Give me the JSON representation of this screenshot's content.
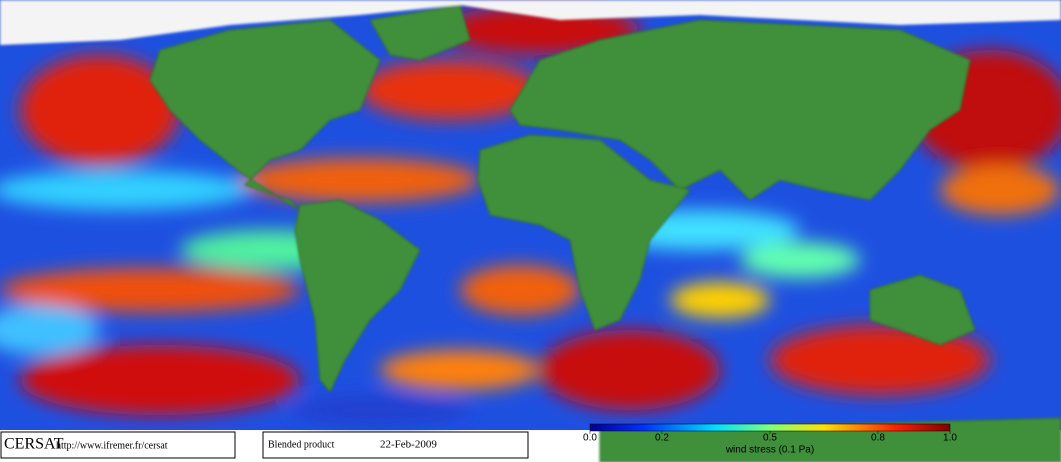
{
  "footer": {
    "logo": "CERSAT",
    "url": "http://www.ifremer.fr/cersat",
    "product": "Blended product",
    "date": "22-Feb-2009"
  },
  "colorbar": {
    "label": "wind stress (0.1 Pa)",
    "lim": [
      0,
      1
    ],
    "ticks": [
      {
        "value": 0,
        "label": "0.0"
      },
      0.2,
      0.5,
      0.8,
      {
        "value": 1,
        "label": "1.0"
      }
    ]
  }
}
